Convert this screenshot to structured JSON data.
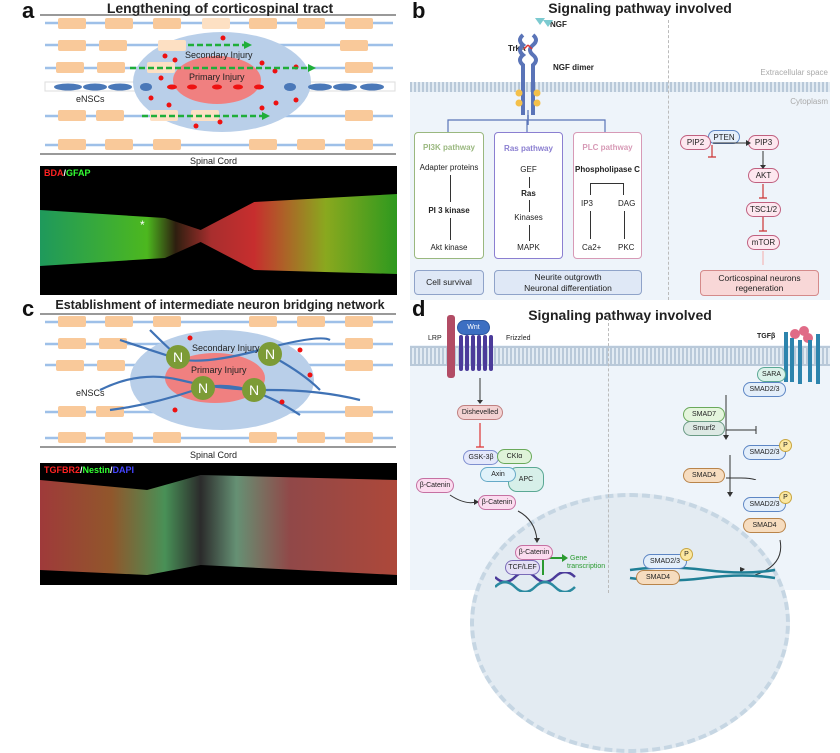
{
  "panel_a": {
    "label": "a",
    "title": "Lengthening of corticospinal tract",
    "secondary": "Secondary Injury",
    "primary": "Primary Injury",
    "ensc": "eNSCs",
    "cord": "Spinal Cord",
    "stain1": "BDA",
    "stain_sep": "/",
    "stain2": "GFAP",
    "marker": "*"
  },
  "panel_b": {
    "label": "b",
    "title": "Signaling pathway involved",
    "ngf": "NGF",
    "trka": "TrkA",
    "dimer": "NGF dimer",
    "extra": "Extracellular space",
    "cyto": "Cytoplasm",
    "pi3k": {
      "title": "PI3K pathway",
      "items": [
        "Adapter proteins",
        "PI 3 kinase",
        "Akt kinase"
      ]
    },
    "ras": {
      "title": "Ras pathway",
      "items": [
        "GEF",
        "Ras",
        "Kinases",
        "MAPK"
      ]
    },
    "plc": {
      "title": "PLC pathway",
      "items": [
        "Phospholipase C",
        "IP3",
        "DAG",
        "Ca2+",
        "PKC"
      ]
    },
    "out1": "Cell survival",
    "out2a": "Neurite outgrowth",
    "out2b": "Neuronal differentiation",
    "pten": "PTEN",
    "pip2": "PIP2",
    "pip3": "PIP3",
    "akt": "AKT",
    "tsc": "TSC1/2",
    "mtor": "mTOR",
    "out3a": "Corticospinal neurons",
    "out3b": "regeneration"
  },
  "panel_c": {
    "label": "c",
    "title": "Establishment of intermediate neuron bridging network",
    "secondary": "Secondary Injury",
    "primary": "Primary Injury",
    "ensc": "eNSCs",
    "cord": "Spinal Cord",
    "n": "N",
    "stain1": "TGFBR2",
    "stain2": "Nestin",
    "stain3": "DAPI",
    "sep": "/"
  },
  "panel_d": {
    "label": "d",
    "title": "Signaling pathway involved",
    "wnt": "Wnt",
    "lrp": "LRP",
    "frizzled": "Frizzled",
    "dishevelled": "Dishevelled",
    "gsk": "GSK-3β",
    "cki": "CKIα",
    "axin": "Axin",
    "apc": "APC",
    "bcat": "β-Catenin",
    "tcf": "TCF/LEF",
    "gene1": "Gene",
    "gene2": "transcription",
    "tgfb": "TGFβ",
    "sara": "SARA",
    "smad23": "SMAD2/3",
    "smad7": "SMAD7",
    "smurf2": "Smurf2",
    "smad4": "SMAD4",
    "p": "P"
  },
  "colors": {
    "orange": "#f9c99a",
    "blue_zone": "#b9cfe9",
    "red_zone": "#f08080",
    "axon": "#9ec0e8",
    "green_arrow": "#1fae3a",
    "pi3k": "#9ab87f",
    "ras": "#8b7fd1",
    "plc": "#d79ab6"
  }
}
